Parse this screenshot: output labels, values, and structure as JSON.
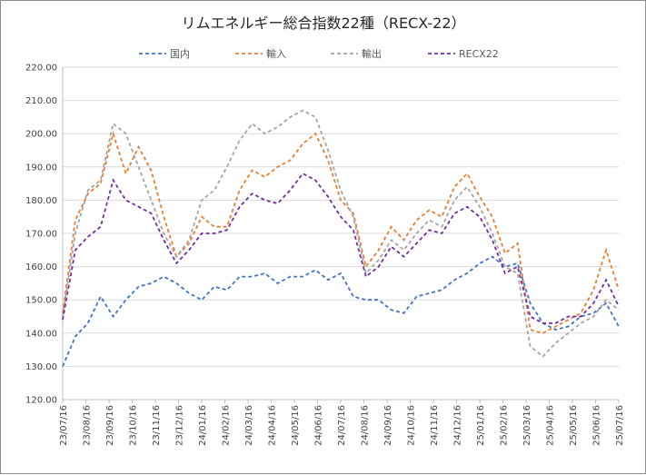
{
  "chart_data": {
    "type": "line",
    "title": "リムエネルギー総合指数22種（RECX-22）",
    "xlabel": "",
    "ylabel": "",
    "ylim": [
      120,
      220
    ],
    "y_ticks": [
      120,
      130,
      140,
      150,
      160,
      170,
      180,
      190,
      200,
      210,
      220
    ],
    "y_tick_labels": [
      "120.00",
      "130.00",
      "140.00",
      "150.00",
      "160.00",
      "170.00",
      "180.00",
      "190.00",
      "200.00",
      "210.00",
      "220.00"
    ],
    "x_tick_labels": [
      "23/07/16",
      "23/08/16",
      "23/09/16",
      "23/10/16",
      "23/11/16",
      "23/12/16",
      "24/01/16",
      "24/02/16",
      "24/03/16",
      "24/04/16",
      "24/05/16",
      "24/06/16",
      "24/07/16",
      "24/08/16",
      "24/09/16",
      "24/10/16",
      "24/11/16",
      "24/12/16",
      "25/01/16",
      "25/02/16",
      "25/03/16",
      "25/04/16",
      "25/05/16",
      "25/06/16",
      "25/07/16"
    ],
    "grid": true,
    "legend_position": "top",
    "series": [
      {
        "name": "国内",
        "color": "#4472c4",
        "dash": "4,3",
        "values": [
          130,
          139,
          143,
          151,
          145,
          150,
          154,
          155,
          157,
          155,
          152,
          150,
          154,
          153,
          157,
          157,
          158,
          155,
          157,
          157,
          159,
          156,
          158,
          151,
          150,
          150,
          147,
          146,
          151,
          152,
          153,
          156,
          158,
          161,
          163,
          160,
          161,
          149,
          143,
          141,
          142,
          145,
          146,
          149,
          142
        ]
      },
      {
        "name": "輸入",
        "color": "#ed7d31",
        "dash": "4,3",
        "values": [
          146,
          174,
          182,
          185,
          200,
          188,
          196,
          189,
          175,
          163,
          167,
          175,
          172,
          172,
          183,
          189,
          187,
          190,
          192,
          197,
          200,
          192,
          180,
          176,
          160,
          165,
          172,
          168,
          174,
          177,
          175,
          184,
          188,
          181,
          175,
          164,
          167,
          141,
          140,
          142,
          144,
          146,
          153,
          165,
          153
        ]
      },
      {
        "name": "輸出",
        "color": "#a5a5a5",
        "dash": "4,3",
        "values": [
          145,
          170,
          183,
          186,
          203,
          200,
          190,
          180,
          170,
          163,
          168,
          180,
          183,
          190,
          198,
          203,
          200,
          202,
          205,
          207,
          205,
          195,
          183,
          175,
          158,
          162,
          168,
          165,
          170,
          174,
          172,
          180,
          184,
          178,
          170,
          160,
          158,
          136,
          133,
          137,
          140,
          143,
          145,
          150,
          147
        ]
      },
      {
        "name": "RECX22",
        "color": "#7030a0",
        "dash": "4,3",
        "values": [
          144,
          165,
          169,
          172,
          186,
          180,
          178,
          176,
          168,
          161,
          165,
          170,
          170,
          171,
          178,
          182,
          180,
          179,
          183,
          188,
          186,
          181,
          175,
          171,
          157,
          160,
          166,
          163,
          167,
          171,
          170,
          176,
          178,
          175,
          168,
          158,
          160,
          145,
          143,
          143,
          145,
          145,
          149,
          156,
          148
        ]
      }
    ]
  }
}
